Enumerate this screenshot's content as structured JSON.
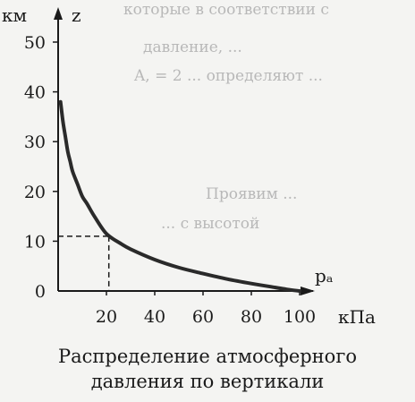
{
  "background_text": [
    "которые в соответствии с",
    "давление, ...",
    "A, = 2 ... определяют ...",
    "Проявим ...",
    "... с высотой"
  ],
  "caption": {
    "line1": "Распределение атмосферного",
    "line2": "давления по вертикали"
  },
  "chart_data": {
    "type": "line",
    "title": "Распределение атмосферного давления по вертикали",
    "xlabel": "кПа",
    "ylabel": "км",
    "x_axis_name": "pₐ",
    "y_axis_name": "z",
    "xlim": [
      0,
      106
    ],
    "ylim": [
      0,
      55
    ],
    "x_ticks": [
      {
        "value": 20,
        "label": "20"
      },
      {
        "value": 40,
        "label": "40"
      },
      {
        "value": 60,
        "label": "60"
      },
      {
        "value": 80,
        "label": "80"
      },
      {
        "value": 100,
        "label": "100"
      }
    ],
    "y_ticks": [
      {
        "value": 0,
        "label": "0"
      },
      {
        "value": 10,
        "label": "10"
      },
      {
        "value": 20,
        "label": "20"
      },
      {
        "value": 30,
        "label": "30"
      },
      {
        "value": 40,
        "label": "40"
      },
      {
        "value": 50,
        "label": "50"
      }
    ],
    "series": [
      {
        "x": [
          1,
          2,
          3,
          4,
          5,
          6,
          8,
          10,
          12,
          15,
          20,
          26,
          30,
          40,
          50,
          60,
          70,
          80,
          90,
          95,
          100
        ],
        "y": [
          38,
          34,
          31,
          28,
          26,
          24,
          21.5,
          19,
          17.5,
          15,
          11.5,
          9.5,
          8.4,
          6.3,
          4.7,
          3.5,
          2.4,
          1.5,
          0.7,
          0.3,
          0
        ]
      }
    ],
    "reference_point": {
      "x": 21,
      "y": 11,
      "style": "dashed"
    },
    "grid": false,
    "legend": "none"
  },
  "colors": {
    "curve": "#2a2a2a",
    "axis": "#1a1a1a",
    "background": "#f4f4f2"
  }
}
